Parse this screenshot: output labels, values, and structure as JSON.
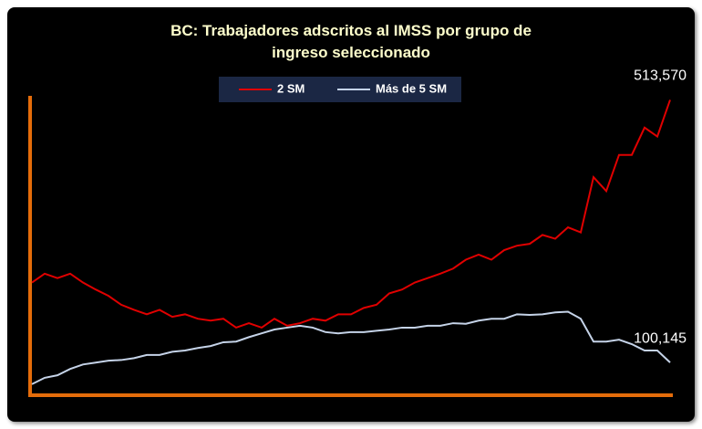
{
  "chart_data": {
    "type": "line",
    "title": "BC: Trabajadores adscritos al IMSS por grupo de ingreso seleccionado",
    "ylim": [
      50000,
      520000
    ],
    "axis_color": "#e46c0a",
    "series": [
      {
        "name": "2 SM",
        "color": "#e00000",
        "values": [
          226000,
          240000,
          233000,
          240000,
          226000,
          215000,
          205000,
          191000,
          183000,
          176000,
          183000,
          172000,
          176000,
          169000,
          166000,
          169000,
          155000,
          162000,
          155000,
          169000,
          158000,
          162000,
          169000,
          166000,
          176000,
          176000,
          186000,
          191000,
          209000,
          215000,
          226000,
          233000,
          240000,
          248000,
          262000,
          270000,
          262000,
          277000,
          284000,
          287000,
          301000,
          295000,
          313000,
          305000,
          392000,
          370000,
          427000,
          427000,
          470000,
          456000,
          513570
        ],
        "value_labels": [
          null,
          null,
          null,
          null,
          null,
          null,
          null,
          null,
          null,
          null,
          null,
          null,
          null,
          null,
          null,
          null,
          null,
          null,
          null,
          null,
          null,
          null,
          null,
          null,
          null,
          null,
          null,
          null,
          null,
          null,
          null,
          null,
          null,
          null,
          null,
          null,
          null,
          null,
          null,
          null,
          null,
          null,
          null,
          null,
          null,
          null,
          null,
          null,
          null,
          null,
          "513,570"
        ]
      },
      {
        "name": "Más de 5 SM",
        "color": "#c5d3e8",
        "values": [
          66000,
          76000,
          80000,
          90000,
          97000,
          100000,
          103000,
          104000,
          107000,
          112000,
          112000,
          117000,
          119000,
          123000,
          126000,
          132000,
          133000,
          140000,
          146000,
          152000,
          155000,
          158000,
          155000,
          148000,
          146000,
          148000,
          148000,
          150000,
          152000,
          155000,
          155000,
          158000,
          158000,
          162000,
          161000,
          166000,
          169000,
          169000,
          176000,
          175000,
          176000,
          179000,
          180000,
          169000,
          133000,
          133000,
          136000,
          129000,
          119000,
          119000,
          100145
        ],
        "value_labels": [
          null,
          null,
          null,
          null,
          null,
          null,
          null,
          null,
          null,
          null,
          null,
          null,
          null,
          null,
          null,
          null,
          null,
          null,
          null,
          null,
          null,
          null,
          null,
          null,
          null,
          null,
          null,
          null,
          null,
          null,
          null,
          null,
          null,
          null,
          null,
          null,
          null,
          null,
          null,
          null,
          null,
          null,
          null,
          null,
          null,
          null,
          null,
          null,
          null,
          null,
          "100,145"
        ]
      }
    ]
  }
}
